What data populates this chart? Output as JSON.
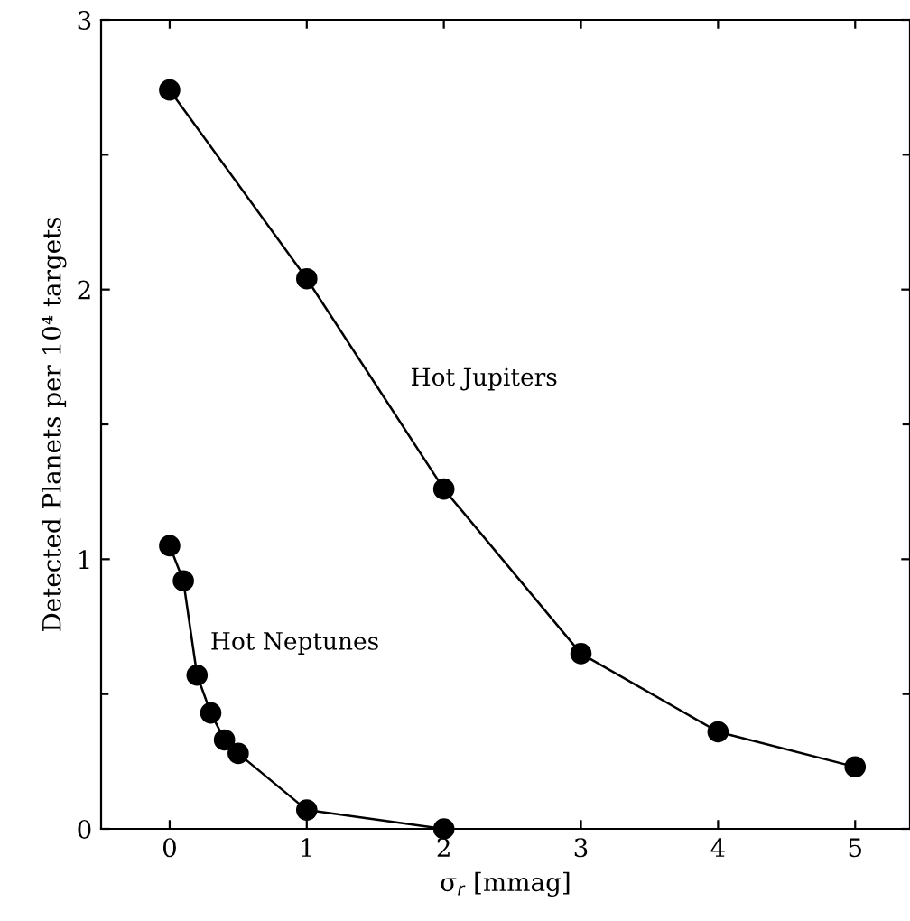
{
  "chart_data": {
    "type": "line",
    "xlabel": "σ$_{r}$ [mmag]",
    "ylabel": "Detected Planets per 10⁴ targets",
    "xlim": [
      -0.5,
      5.4
    ],
    "ylim": [
      0,
      3
    ],
    "xticks": [
      0,
      1,
      2,
      3,
      4,
      5
    ],
    "yticks": [
      0,
      {
        "value": 0.5,
        "label": null
      },
      1,
      {
        "value": 1.5,
        "label": null
      },
      2,
      {
        "value": 2.5,
        "label": null
      },
      3
    ],
    "marker": "circle",
    "line_style": "solid",
    "grid": false,
    "legend": false,
    "series": [
      {
        "name": "Hot Jupiters",
        "color": "#000000",
        "x": [
          0,
          1,
          2,
          3,
          4,
          5
        ],
        "values": [
          2.74,
          2.04,
          1.26,
          0.65,
          0.36,
          0.23
        ]
      },
      {
        "name": "Hot Neptunes",
        "color": "#000000",
        "x": [
          0,
          0.1,
          0.2,
          0.3,
          0.4,
          0.5,
          1,
          2
        ],
        "values": [
          1.05,
          0.92,
          0.57,
          0.43,
          0.33,
          0.28,
          0.07,
          0
        ]
      }
    ]
  }
}
